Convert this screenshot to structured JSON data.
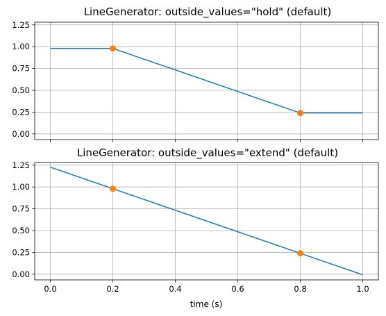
{
  "chart_data": [
    {
      "type": "line",
      "title": "LineGenerator: outside_values=\"hold\" (default)",
      "xlabel": "",
      "ylabel": "",
      "xlim": [
        -0.05,
        1.05
      ],
      "ylim": [
        -0.065,
        1.28
      ],
      "xticks": [
        0.0,
        0.2,
        0.4,
        0.6,
        0.8,
        1.0
      ],
      "xtick_labels": [],
      "yticks": [
        0.0,
        0.25,
        0.5,
        0.75,
        1.0,
        1.25
      ],
      "ytick_labels": [
        "0.00",
        "0.25",
        "0.50",
        "0.75",
        "1.00",
        "1.25"
      ],
      "grid": true,
      "series": [
        {
          "kind": "line",
          "color": "#1f77b4",
          "x": [
            0.0,
            0.2,
            0.8,
            1.0
          ],
          "y": [
            0.98,
            0.98,
            0.24,
            0.24
          ]
        },
        {
          "kind": "points",
          "color": "#ff7f0e",
          "x": [
            0.2,
            0.8
          ],
          "y": [
            0.98,
            0.24
          ]
        }
      ]
    },
    {
      "type": "line",
      "title": "LineGenerator: outside_values=\"extend\" (default)",
      "xlabel": "time (s)",
      "ylabel": "",
      "xlim": [
        -0.05,
        1.05
      ],
      "ylim": [
        -0.065,
        1.28
      ],
      "xticks": [
        0.0,
        0.2,
        0.4,
        0.6,
        0.8,
        1.0
      ],
      "xtick_labels": [
        "0.0",
        "0.2",
        "0.4",
        "0.6",
        "0.8",
        "1.0"
      ],
      "yticks": [
        0.0,
        0.25,
        0.5,
        0.75,
        1.0,
        1.25
      ],
      "ytick_labels": [
        "0.00",
        "0.25",
        "0.50",
        "0.75",
        "1.00",
        "1.25"
      ],
      "grid": true,
      "series": [
        {
          "kind": "line",
          "color": "#1f77b4",
          "x": [
            0.0,
            0.2,
            0.8,
            1.0
          ],
          "y": [
            1.227,
            0.98,
            0.24,
            -0.007
          ]
        },
        {
          "kind": "points",
          "color": "#ff7f0e",
          "x": [
            0.2,
            0.8
          ],
          "y": [
            0.98,
            0.24
          ]
        }
      ]
    }
  ]
}
